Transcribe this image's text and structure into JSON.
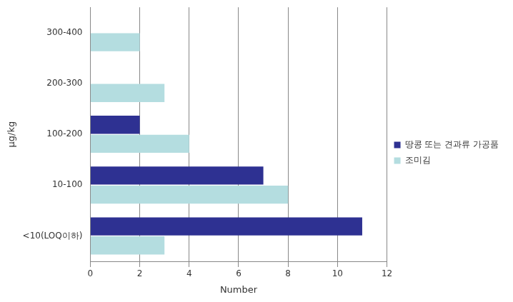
{
  "chart_data": {
    "type": "bar",
    "orientation": "horizontal",
    "categories": [
      "300-400",
      "200-300",
      "100-200",
      "10-100",
      "<10(LOQ이하)"
    ],
    "series": [
      {
        "name": "땅콩 또는 견과류 가공품",
        "color": "#2e3192",
        "values": [
          0,
          0,
          2,
          7,
          11
        ]
      },
      {
        "name": "조미김",
        "color": "#b4dde0",
        "values": [
          2,
          3,
          4,
          8,
          3
        ]
      }
    ],
    "x_label": "Number",
    "y_label": "µg/kg",
    "xlim": [
      0,
      12
    ],
    "xticks": [
      0,
      2,
      4,
      6,
      8,
      10,
      12
    ],
    "grid": true,
    "legend": "right"
  }
}
